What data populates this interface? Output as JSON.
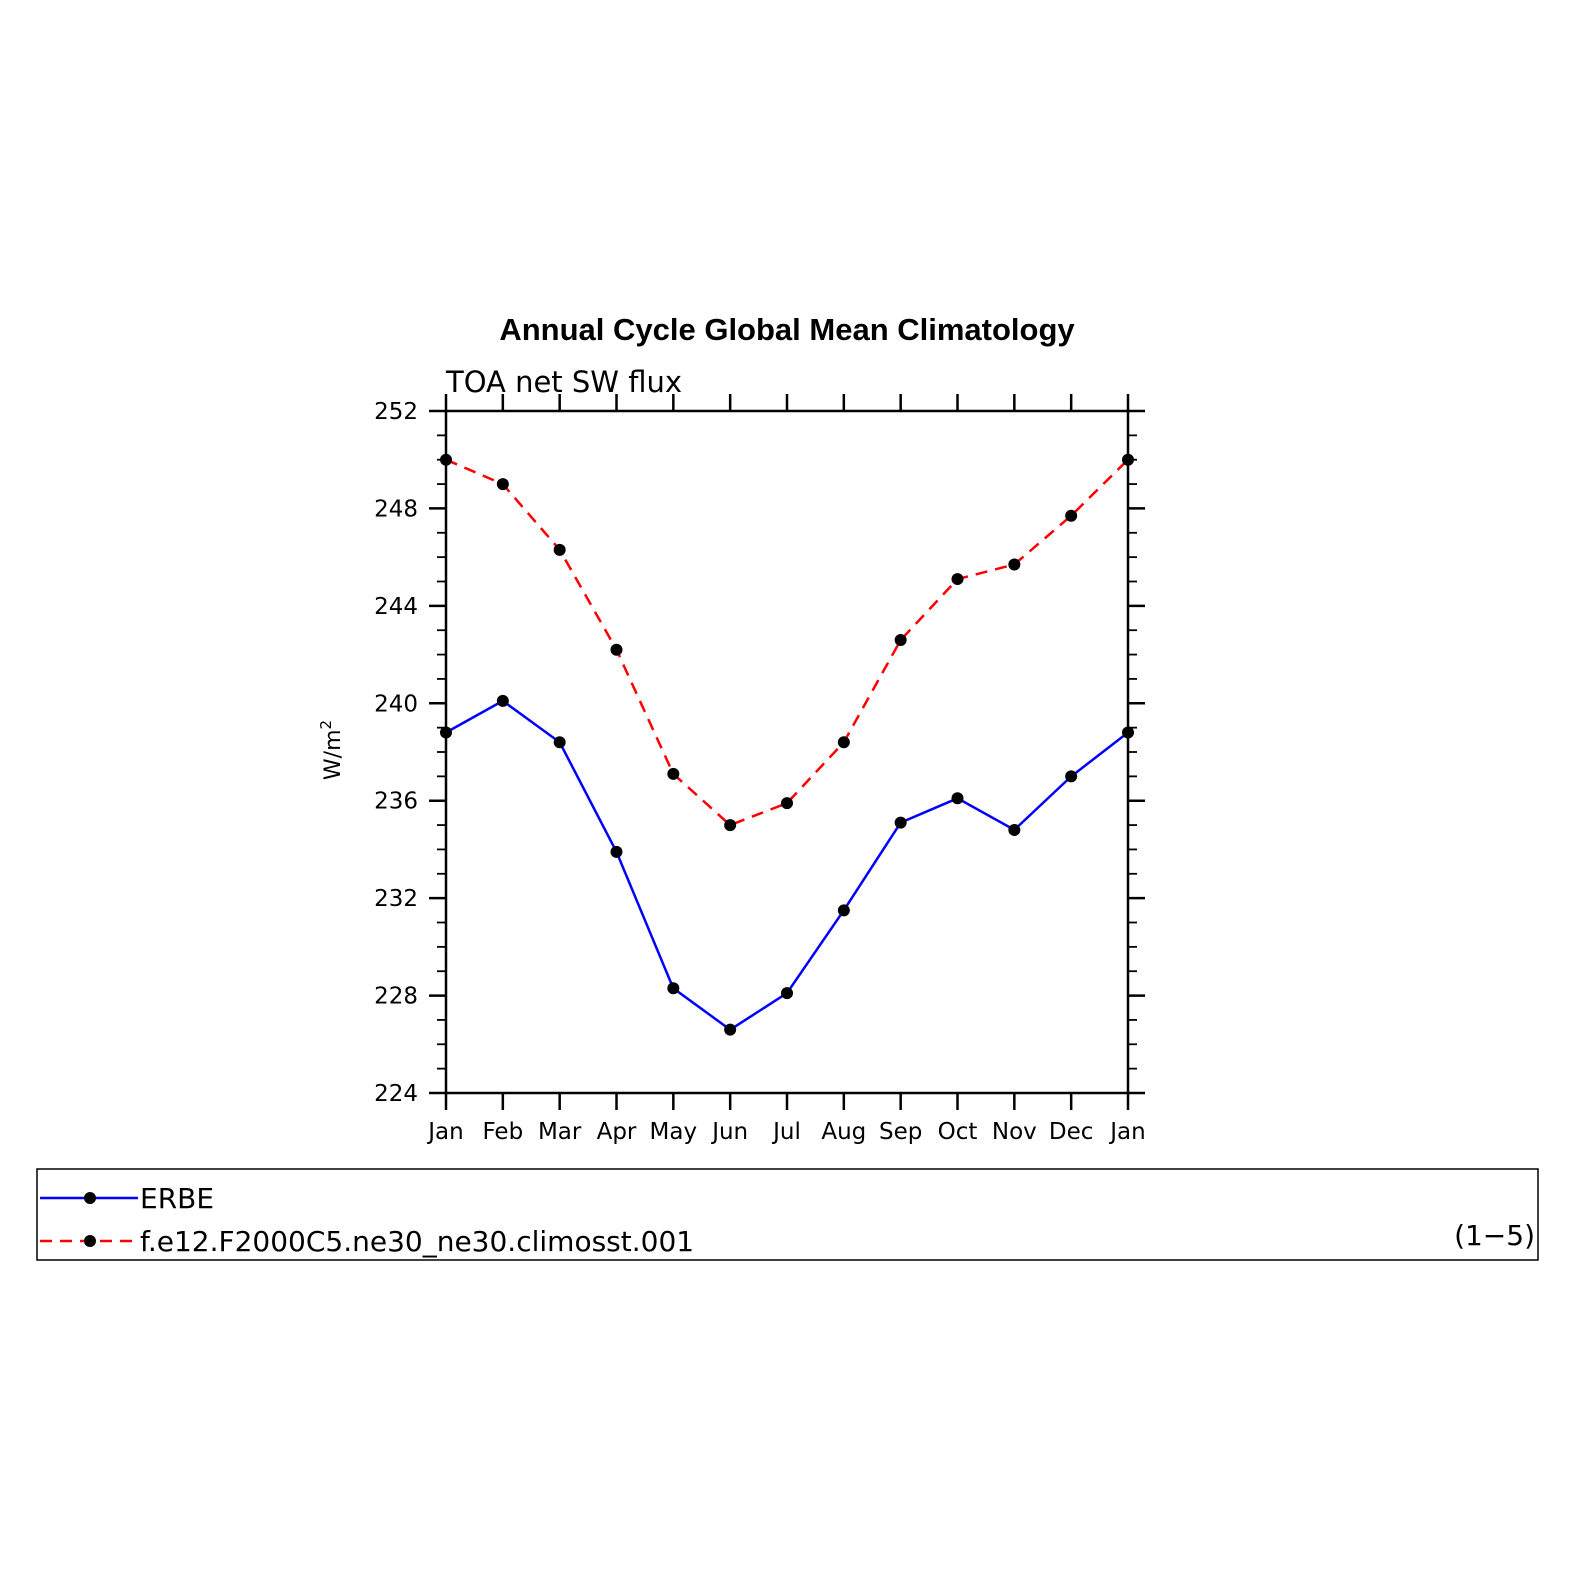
{
  "chart_data": {
    "type": "line",
    "title": "Annual Cycle Global Mean Climatology",
    "subtitle": "TOA net SW flux",
    "ylabel": "W/m",
    "ylabel_superscript": "2",
    "ylim": [
      224,
      252
    ],
    "yticks": [
      "224",
      "228",
      "232",
      "236",
      "240",
      "244",
      "248",
      "252"
    ],
    "categories": [
      "Jan",
      "Feb",
      "Mar",
      "Apr",
      "May",
      "Jun",
      "Jul",
      "Aug",
      "Sep",
      "Oct",
      "Nov",
      "Dec",
      "Jan"
    ],
    "series": [
      {
        "name": "ERBE",
        "color": "#0000ff",
        "dash": "solid",
        "values": [
          238.8,
          240.1,
          238.4,
          233.9,
          228.3,
          226.6,
          228.1,
          231.5,
          235.1,
          236.1,
          234.8,
          237.0,
          238.8
        ]
      },
      {
        "name": "f.e12.F2000C5.ne30_ne30.climosst.001",
        "color": "#ff0000",
        "dash": "dashed",
        "values": [
          250.0,
          249.0,
          246.3,
          242.2,
          237.1,
          235.0,
          235.9,
          238.4,
          242.6,
          245.1,
          245.7,
          247.7,
          250.0
        ]
      }
    ],
    "legend": {
      "position": "bottom",
      "note": "(1−5)"
    },
    "marker_color": "#000000"
  }
}
